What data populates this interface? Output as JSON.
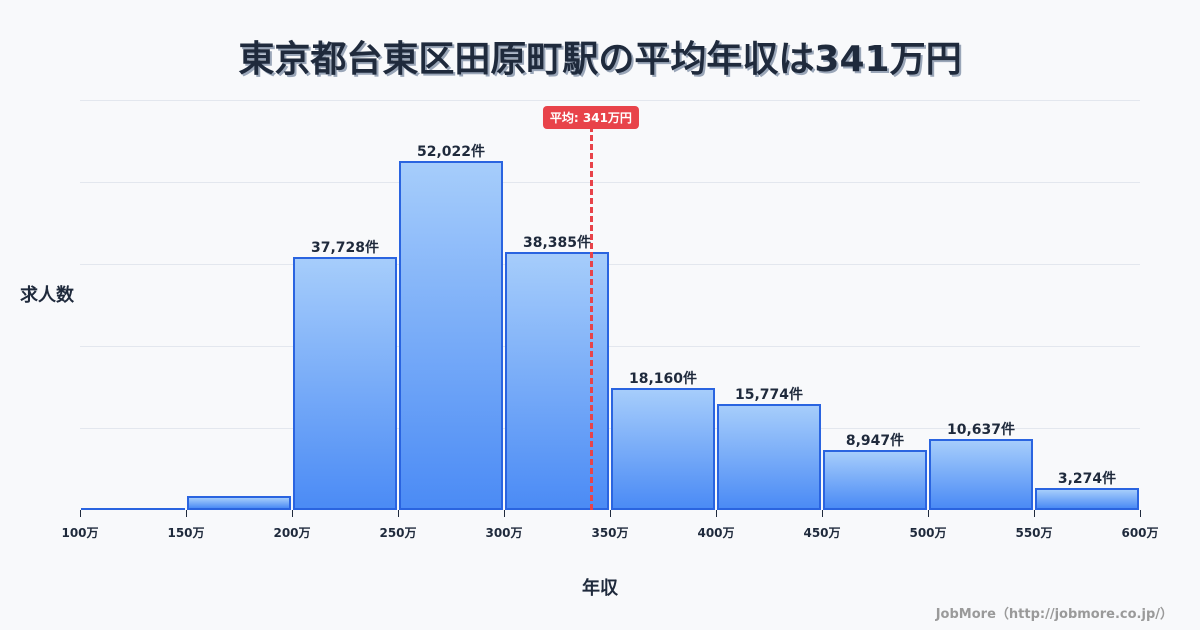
{
  "title": "東京都台東区田原町駅の平均年収は341万円",
  "y_axis_label": "求人数",
  "x_axis_label": "年収",
  "credit": "JobMore（http://jobmore.co.jp/）",
  "average_badge": "平均: 341万円",
  "colors": {
    "bar_border": "#2a64e0",
    "bar_top": "#a6cdfb",
    "bar_bottom": "#4b8bf5",
    "average_line": "#e8434a",
    "text": "#1f2a3c",
    "grid": "#e3e7ee",
    "background": "#f8f9fb"
  },
  "chart_data": {
    "type": "bar",
    "title": "東京都台東区田原町駅の平均年収は341万円",
    "xlabel": "年収",
    "ylabel": "求人数",
    "categories": [
      "100-150万",
      "150-200万",
      "200-250万",
      "250-300万",
      "300-350万",
      "350-400万",
      "400-450万",
      "450-500万",
      "500-550万",
      "550-600万"
    ],
    "bin_edges": [
      100,
      150,
      200,
      250,
      300,
      350,
      400,
      450,
      500,
      550,
      600
    ],
    "values": [
      200,
      2100,
      37728,
      52022,
      38385,
      18160,
      15774,
      8947,
      10637,
      3274
    ],
    "value_labels": [
      "",
      "",
      "37,728件",
      "52,022件",
      "38,385件",
      "18,160件",
      "15,774件",
      "8,947件",
      "10,637件",
      "3,274件"
    ],
    "x_tick_labels": [
      "100万",
      "150万",
      "200万",
      "250万",
      "300万",
      "350万",
      "400万",
      "450万",
      "500万",
      "550万",
      "600万"
    ],
    "ylim": [
      0,
      61100
    ],
    "grid": true,
    "gridlines_count": 5,
    "annotations": [
      {
        "type": "vline",
        "x": 341,
        "label": "平均: 341万円"
      }
    ],
    "legend": null
  }
}
